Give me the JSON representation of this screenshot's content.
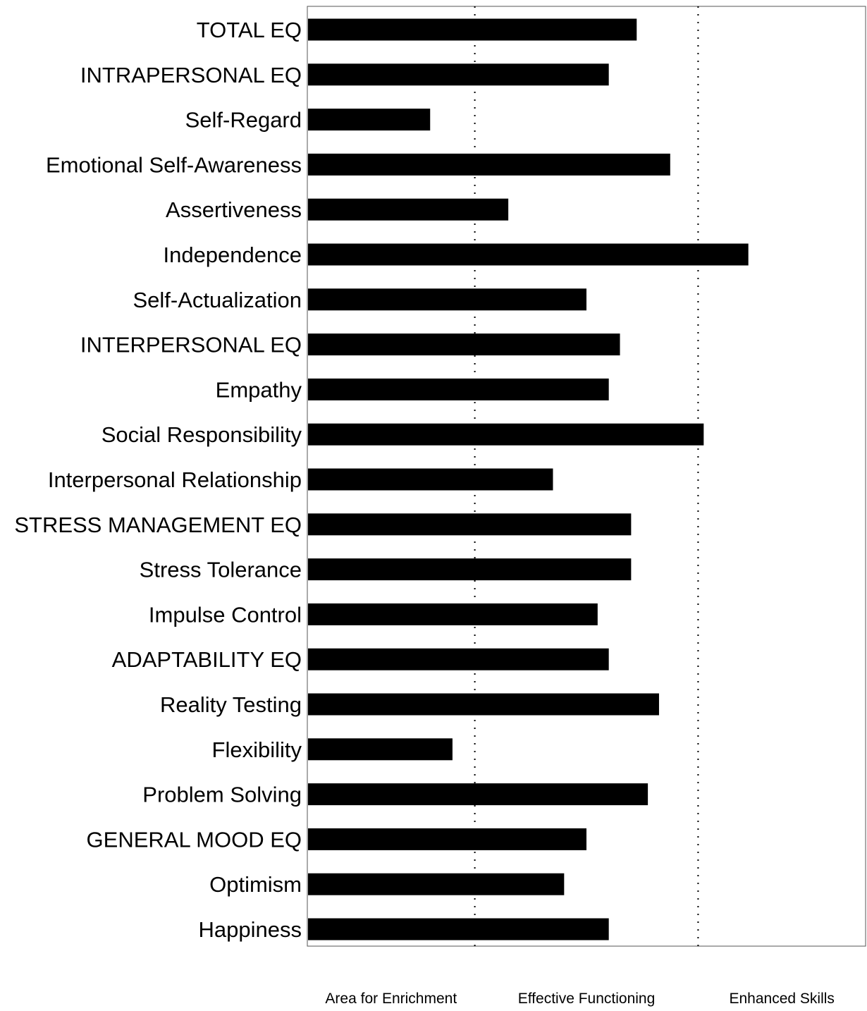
{
  "chart_data": {
    "type": "bar",
    "orientation": "horizontal",
    "categories": [
      "TOTAL EQ",
      "INTRAPERSONAL EQ",
      "Self-Regard",
      "Emotional Self-Awareness",
      "Assertiveness",
      "Independence",
      "Self-Actualization",
      "INTERPERSONAL EQ",
      "Empathy",
      "Social Responsibility",
      "Interpersonal Relationship",
      "STRESS MANAGEMENT EQ",
      "Stress Tolerance",
      "Impulse Control",
      "ADAPTABILITY EQ",
      "Reality Testing",
      "Flexibility",
      "Problem Solving",
      "GENERAL MOOD EQ",
      "Optimism",
      "Happiness"
    ],
    "values": [
      129,
      124,
      92,
      135,
      106,
      149,
      120,
      126,
      124,
      141,
      114,
      128,
      128,
      122,
      124,
      133,
      96,
      131,
      120,
      116,
      124
    ],
    "xlim": [
      70,
      170
    ],
    "zone_boundaries": [
      100,
      140
    ],
    "zone_labels": [
      "Area for Enrichment",
      "Effective Functioning",
      "Enhanced Skills"
    ],
    "grid": false,
    "bar_color": "#000000",
    "divider_style": "dotted"
  }
}
